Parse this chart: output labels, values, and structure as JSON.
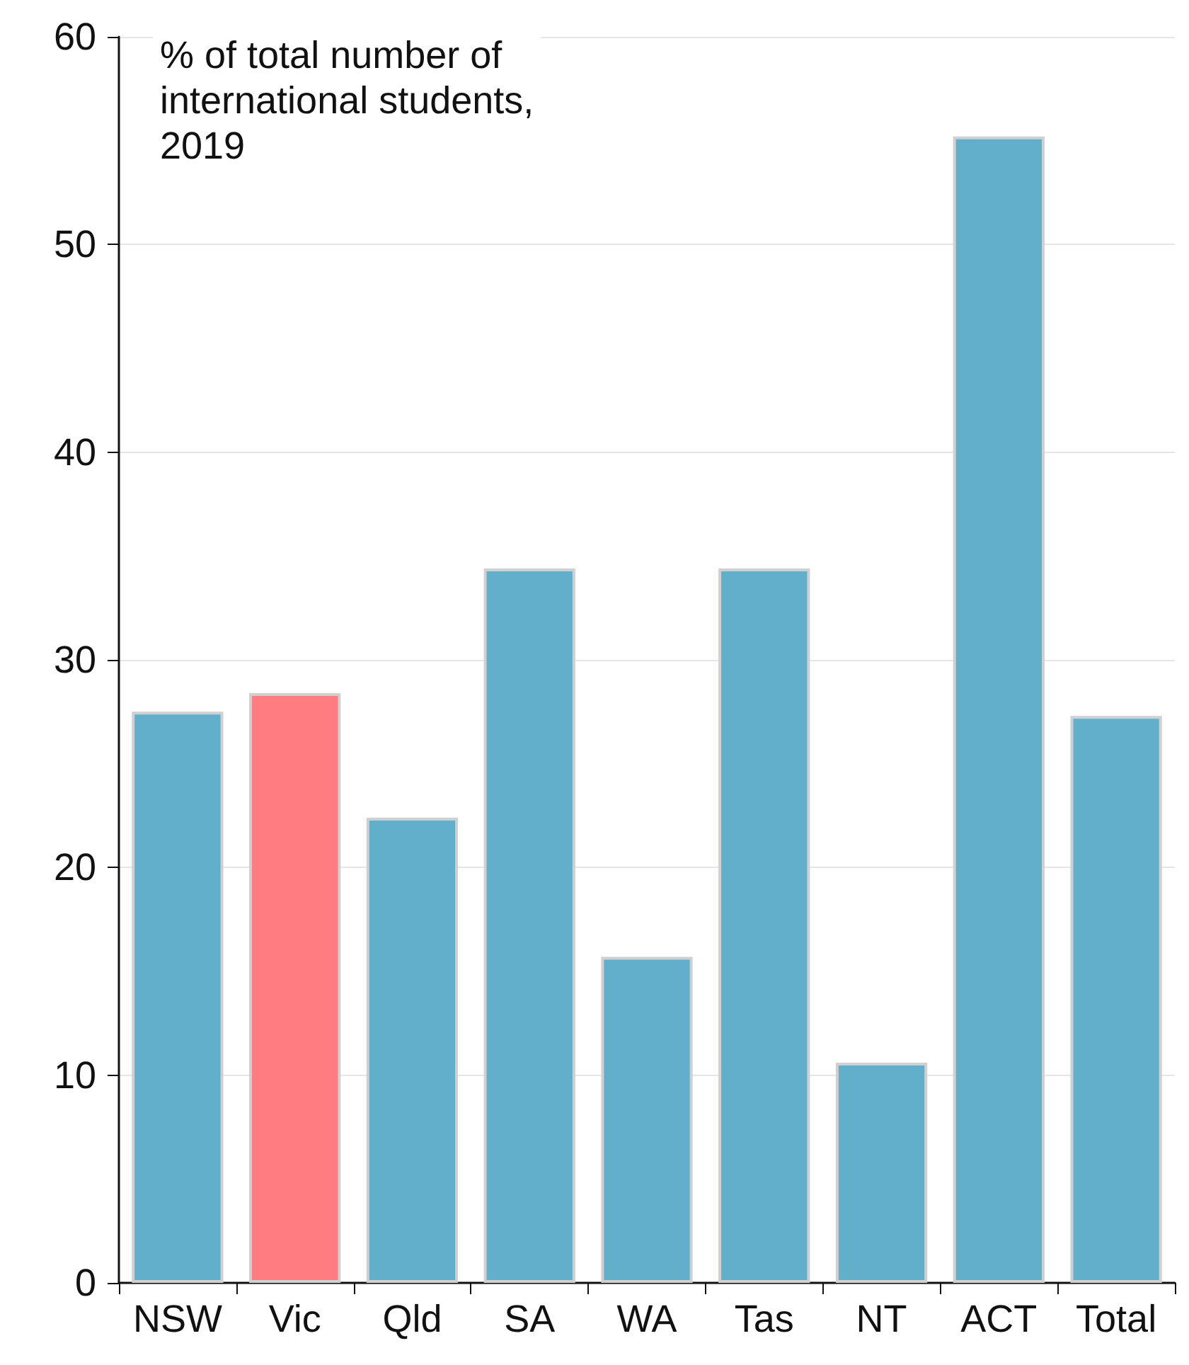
{
  "chart_data": {
    "type": "bar",
    "title": "% of total number of\ninternational students,\n2019",
    "categories": [
      "NSW",
      "Vic",
      "Qld",
      "SA",
      "WA",
      "Tas",
      "NT",
      "ACT",
      "Total"
    ],
    "values": [
      27.5,
      28.4,
      22.4,
      34.4,
      15.7,
      34.4,
      10.6,
      55.2,
      27.3
    ],
    "colors": [
      "#62afcc",
      "#ff7c80",
      "#62afcc",
      "#62afcc",
      "#62afcc",
      "#62afcc",
      "#62afcc",
      "#62afcc",
      "#62afcc"
    ],
    "ylim": [
      0,
      60
    ],
    "yticks": [
      0,
      10,
      20,
      30,
      40,
      50,
      60
    ],
    "grid": "y"
  }
}
